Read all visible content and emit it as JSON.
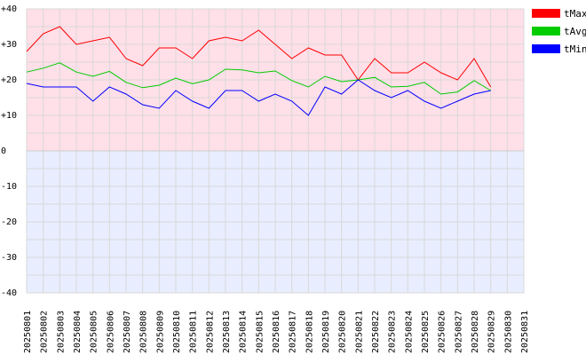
{
  "chart_data": {
    "type": "line",
    "title": "",
    "xlabel": "",
    "ylabel": "",
    "ylim": [
      -40,
      40
    ],
    "y_ticks": [
      40,
      30,
      20,
      10,
      0,
      -10,
      -20,
      -30,
      -40
    ],
    "y_tick_labels": [
      "+40",
      "+30",
      "+20",
      "+10",
      "0",
      "-10",
      "-20",
      "-30",
      "-40"
    ],
    "grid": true,
    "legend_position": "right",
    "background": {
      "above_zero": "#ffdfe8",
      "below_zero": "#e8eeff",
      "grid": "#d8d8d8"
    },
    "categories": [
      "20250801",
      "20250802",
      "20250803",
      "20250804",
      "20250805",
      "20250806",
      "20250807",
      "20250808",
      "20250809",
      "20250810",
      "20250811",
      "20250812",
      "20250813",
      "20250814",
      "20250815",
      "20250816",
      "20250817",
      "20250818",
      "20250819",
      "20250820",
      "20250821",
      "20250822",
      "20250823",
      "20250824",
      "20250825",
      "20250826",
      "20250827",
      "20250828",
      "20250829",
      "20250830",
      "20250831"
    ],
    "series": [
      {
        "name": "tMax",
        "color": "#ff0000",
        "values": [
          28,
          33,
          35,
          30,
          31,
          32,
          26,
          24,
          29,
          29,
          26,
          31,
          32,
          31,
          34,
          30,
          26,
          29,
          27,
          27,
          20,
          26,
          22,
          22,
          25,
          22,
          20,
          26,
          18,
          null,
          null
        ]
      },
      {
        "name": "tAvg",
        "color": "#00cc00",
        "values": [
          22.2,
          23.3,
          24.8,
          22.2,
          21.0,
          22.4,
          19.3,
          17.8,
          18.5,
          20.5,
          18.9,
          20.0,
          23.0,
          22.8,
          22.0,
          22.5,
          19.8,
          18.0,
          21.0,
          19.5,
          20.0,
          20.7,
          18.0,
          18.2,
          19.3,
          16.0,
          16.6,
          19.8,
          17.0,
          null,
          null
        ]
      },
      {
        "name": "tMin",
        "color": "#0000ff",
        "values": [
          19,
          18,
          18,
          18,
          14,
          18,
          16,
          13,
          12,
          17,
          14,
          12,
          17,
          17,
          14,
          16,
          14,
          10,
          18,
          16,
          20,
          17,
          15,
          17,
          14,
          12,
          14,
          16,
          17,
          null,
          null
        ]
      }
    ]
  }
}
